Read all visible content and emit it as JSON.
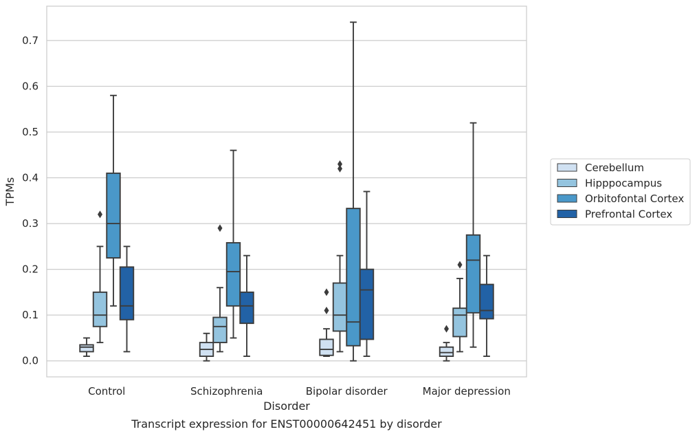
{
  "chart_data": {
    "type": "box",
    "caption": "Transcript expression for ENST00000642451 by disorder",
    "xlabel": "Disorder",
    "ylabel": "TPMs",
    "ylim": [
      -0.035,
      0.775
    ],
    "yticks": [
      0.0,
      0.1,
      0.2,
      0.3,
      0.4,
      0.5,
      0.6,
      0.7
    ],
    "ytick_labels": [
      "0.0",
      "0.1",
      "0.2",
      "0.3",
      "0.4",
      "0.5",
      "0.6",
      "0.7"
    ],
    "grid": true,
    "legend_position": "right",
    "categories": [
      "Control",
      "Schizophrenia",
      "Bipolar disorder",
      "Major depression"
    ],
    "series": [
      {
        "name": "Cerebellum",
        "color": "#d0e1f2",
        "boxes": [
          {
            "whisker_low": 0.01,
            "q1": 0.02,
            "median": 0.03,
            "q3": 0.035,
            "whisker_high": 0.05,
            "outliers": []
          },
          {
            "whisker_low": 0.0,
            "q1": 0.01,
            "median": 0.025,
            "q3": 0.04,
            "whisker_high": 0.06,
            "outliers": []
          },
          {
            "whisker_low": 0.01,
            "q1": 0.012,
            "median": 0.025,
            "q3": 0.047,
            "whisker_high": 0.07,
            "outliers": [
              0.11,
              0.15
            ]
          },
          {
            "whisker_low": 0.0,
            "q1": 0.01,
            "median": 0.018,
            "q3": 0.03,
            "whisker_high": 0.04,
            "outliers": [
              0.07
            ]
          }
        ]
      },
      {
        "name": "Hipppocampus",
        "color": "#94c4df",
        "boxes": [
          {
            "whisker_low": 0.04,
            "q1": 0.075,
            "median": 0.1,
            "q3": 0.15,
            "whisker_high": 0.25,
            "outliers": [
              0.32
            ]
          },
          {
            "whisker_low": 0.02,
            "q1": 0.04,
            "median": 0.075,
            "q3": 0.095,
            "whisker_high": 0.16,
            "outliers": [
              0.29
            ]
          },
          {
            "whisker_low": 0.02,
            "q1": 0.065,
            "median": 0.1,
            "q3": 0.17,
            "whisker_high": 0.23,
            "outliers": [
              0.42,
              0.43
            ]
          },
          {
            "whisker_low": 0.02,
            "q1": 0.053,
            "median": 0.1,
            "q3": 0.115,
            "whisker_high": 0.18,
            "outliers": [
              0.21
            ]
          }
        ]
      },
      {
        "name": "Orbitofontal Cortex",
        "color": "#4a98c9",
        "boxes": [
          {
            "whisker_low": 0.12,
            "q1": 0.225,
            "median": 0.3,
            "q3": 0.41,
            "whisker_high": 0.58,
            "outliers": []
          },
          {
            "whisker_low": 0.05,
            "q1": 0.12,
            "median": 0.195,
            "q3": 0.258,
            "whisker_high": 0.46,
            "outliers": []
          },
          {
            "whisker_low": 0.0,
            "q1": 0.033,
            "median": 0.085,
            "q3": 0.333,
            "whisker_high": 0.74,
            "outliers": []
          },
          {
            "whisker_low": 0.03,
            "q1": 0.105,
            "median": 0.22,
            "q3": 0.275,
            "whisker_high": 0.52,
            "outliers": []
          }
        ]
      },
      {
        "name": "Prefrontal Cortex",
        "color": "#2262a6",
        "boxes": [
          {
            "whisker_low": 0.02,
            "q1": 0.09,
            "median": 0.12,
            "q3": 0.205,
            "whisker_high": 0.25,
            "outliers": []
          },
          {
            "whisker_low": 0.01,
            "q1": 0.082,
            "median": 0.12,
            "q3": 0.15,
            "whisker_high": 0.23,
            "outliers": []
          },
          {
            "whisker_low": 0.01,
            "q1": 0.047,
            "median": 0.155,
            "q3": 0.2,
            "whisker_high": 0.37,
            "outliers": []
          },
          {
            "whisker_low": 0.01,
            "q1": 0.092,
            "median": 0.11,
            "q3": 0.167,
            "whisker_high": 0.23,
            "outliers": []
          }
        ]
      }
    ]
  }
}
